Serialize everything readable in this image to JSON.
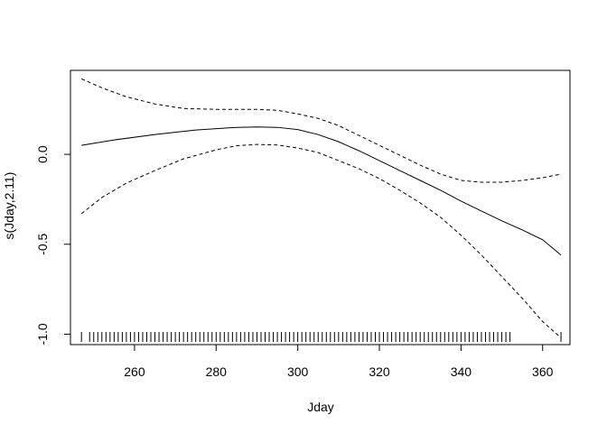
{
  "chart_data": {
    "type": "line",
    "title": "",
    "xlabel": "Jday",
    "ylabel": "s(Jday,2.11)",
    "xlim": [
      244.3,
      366.7
    ],
    "ylim": [
      -1.058,
      0.467
    ],
    "xticks": [
      260,
      280,
      300,
      320,
      340,
      360
    ],
    "xtick_labels": [
      "260",
      "280",
      "300",
      "320",
      "340",
      "360"
    ],
    "yticks": [
      0.0,
      -0.5,
      -1.0
    ],
    "ytick_labels": [
      "0.0",
      "-0.5",
      "-1.0"
    ],
    "grid": false,
    "legend": "none",
    "series": [
      {
        "style": "solid",
        "x": [
          247,
          255,
          265,
          275,
          285,
          290,
          295,
          300,
          305,
          310,
          315,
          320,
          325,
          330,
          335,
          340,
          345,
          350,
          355,
          360,
          364.5
        ],
        "y": [
          0.05,
          0.08,
          0.11,
          0.135,
          0.15,
          0.152,
          0.15,
          0.138,
          0.11,
          0.07,
          0.02,
          -0.035,
          -0.09,
          -0.145,
          -0.2,
          -0.26,
          -0.315,
          -0.37,
          -0.42,
          -0.475,
          -0.56
        ]
      },
      {
        "style": "dashed",
        "x": [
          247,
          252,
          258,
          265,
          272,
          280,
          285,
          290,
          295,
          300,
          305,
          310,
          315,
          320,
          325,
          330,
          335,
          340,
          345,
          350,
          355,
          360,
          364.5
        ],
        "y": [
          0.42,
          0.37,
          0.32,
          0.28,
          0.255,
          0.25,
          0.25,
          0.25,
          0.245,
          0.225,
          0.2,
          0.16,
          0.105,
          0.05,
          -0.005,
          -0.06,
          -0.11,
          -0.145,
          -0.155,
          -0.155,
          -0.145,
          -0.13,
          -0.11
        ]
      },
      {
        "style": "dashed",
        "x": [
          247,
          252,
          258,
          265,
          272,
          280,
          285,
          290,
          295,
          300,
          305,
          310,
          315,
          320,
          325,
          330,
          335,
          340,
          345,
          350,
          355,
          360,
          364.5
        ],
        "y": [
          -0.33,
          -0.24,
          -0.16,
          -0.09,
          -0.025,
          0.025,
          0.048,
          0.055,
          0.052,
          0.035,
          0.01,
          -0.035,
          -0.08,
          -0.135,
          -0.2,
          -0.27,
          -0.35,
          -0.45,
          -0.56,
          -0.68,
          -0.8,
          -0.93,
          -1.02
        ]
      }
    ],
    "rug_x": [
      247,
      249,
      250,
      251,
      252,
      253,
      254,
      255,
      256,
      257,
      258,
      259,
      260,
      261,
      262,
      263,
      264,
      265,
      266,
      267,
      268,
      269,
      270,
      271,
      272,
      273,
      274,
      275,
      276,
      277,
      278,
      279,
      280,
      281,
      282,
      283,
      284,
      285,
      286,
      287,
      288,
      289,
      290,
      291,
      292,
      293,
      294,
      295,
      296,
      297,
      298,
      299,
      300,
      301,
      302,
      303,
      304,
      305,
      306,
      307,
      308,
      309,
      310,
      311,
      312,
      313,
      314,
      315,
      316,
      317,
      318,
      319,
      320,
      321,
      322,
      323,
      324,
      325,
      326,
      327,
      328,
      329,
      330,
      331,
      332,
      333,
      334,
      335,
      336,
      337,
      338,
      339,
      340,
      341,
      342,
      343,
      344,
      345,
      346,
      347,
      348,
      349,
      350,
      351,
      352,
      364.5
    ]
  }
}
